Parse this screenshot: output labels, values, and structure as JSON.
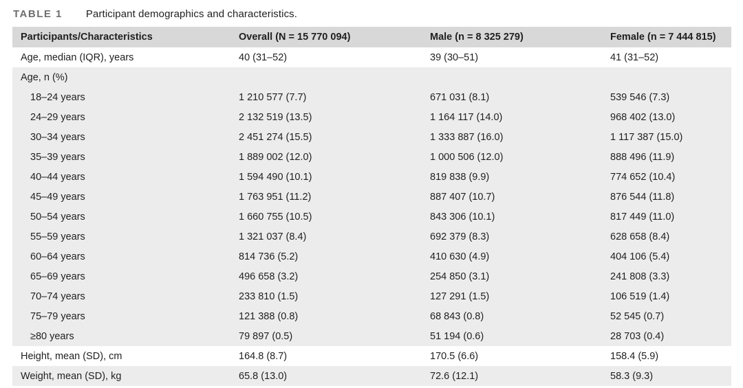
{
  "table": {
    "label": "TABLE 1",
    "caption": "Participant demographics and characteristics.",
    "columns": [
      "Participants/Characteristics",
      "Overall (N = 15 770 094)",
      "Male (n = 8 325 279)",
      "Female (n = 7 444 815)"
    ],
    "rows": [
      {
        "label": "Age, median (IQR), years",
        "indent": false,
        "shaded": false,
        "values": [
          "40 (31–52)",
          "39 (30–51)",
          "41 (31–52)"
        ]
      },
      {
        "label": "Age, n (%)",
        "indent": false,
        "shaded": true,
        "values": [
          "",
          "",
          ""
        ]
      },
      {
        "label": "18–24 years",
        "indent": true,
        "shaded": true,
        "values": [
          "1 210 577 (7.7)",
          "671 031 (8.1)",
          "539 546 (7.3)"
        ]
      },
      {
        "label": "24–29 years",
        "indent": true,
        "shaded": true,
        "values": [
          "2 132 519 (13.5)",
          "1 164 117 (14.0)",
          "968 402 (13.0)"
        ]
      },
      {
        "label": "30–34 years",
        "indent": true,
        "shaded": true,
        "values": [
          "2 451 274 (15.5)",
          "1 333 887 (16.0)",
          "1 117 387 (15.0)"
        ]
      },
      {
        "label": "35–39 years",
        "indent": true,
        "shaded": true,
        "values": [
          "1 889 002 (12.0)",
          "1 000 506 (12.0)",
          "888 496 (11.9)"
        ]
      },
      {
        "label": "40–44 years",
        "indent": true,
        "shaded": true,
        "values": [
          "1 594 490 (10.1)",
          "819 838 (9.9)",
          "774 652 (10.4)"
        ]
      },
      {
        "label": "45–49 years",
        "indent": true,
        "shaded": true,
        "values": [
          "1 763 951 (11.2)",
          "887 407 (10.7)",
          "876 544 (11.8)"
        ]
      },
      {
        "label": "50–54 years",
        "indent": true,
        "shaded": true,
        "values": [
          "1 660 755 (10.5)",
          "843 306 (10.1)",
          "817 449 (11.0)"
        ]
      },
      {
        "label": "55–59 years",
        "indent": true,
        "shaded": true,
        "values": [
          "1 321 037 (8.4)",
          "692 379 (8.3)",
          "628 658 (8.4)"
        ]
      },
      {
        "label": "60–64 years",
        "indent": true,
        "shaded": true,
        "values": [
          "814 736 (5.2)",
          "410 630 (4.9)",
          "404 106 (5.4)"
        ]
      },
      {
        "label": "65–69 years",
        "indent": true,
        "shaded": true,
        "values": [
          "496 658 (3.2)",
          "254 850 (3.1)",
          "241 808 (3.3)"
        ]
      },
      {
        "label": "70–74 years",
        "indent": true,
        "shaded": true,
        "values": [
          "233 810 (1.5)",
          "127 291 (1.5)",
          "106 519 (1.4)"
        ]
      },
      {
        "label": "75–79 years",
        "indent": true,
        "shaded": true,
        "values": [
          "121 388 (0.8)",
          "68 843 (0.8)",
          "52 545 (0.7)"
        ]
      },
      {
        "label": "≥80 years",
        "indent": true,
        "shaded": true,
        "values": [
          "79 897 (0.5)",
          "51 194 (0.6)",
          "28 703 (0.4)"
        ]
      },
      {
        "label": "Height, mean (SD), cm",
        "indent": false,
        "shaded": false,
        "values": [
          "164.8 (8.7)",
          "170.5 (6.6)",
          "158.4 (5.9)"
        ]
      },
      {
        "label": "Weight, mean (SD), kg",
        "indent": false,
        "shaded": true,
        "values": [
          "65.8 (13.0)",
          "72.6 (12.1)",
          "58.3 (9.3)"
        ]
      }
    ]
  },
  "colors": {
    "header_row_bg": "#d8d8d8",
    "shaded_group_bg": "#ececec",
    "table_label_text": "#6e6e6e",
    "body_text": "#1f1f1f"
  }
}
